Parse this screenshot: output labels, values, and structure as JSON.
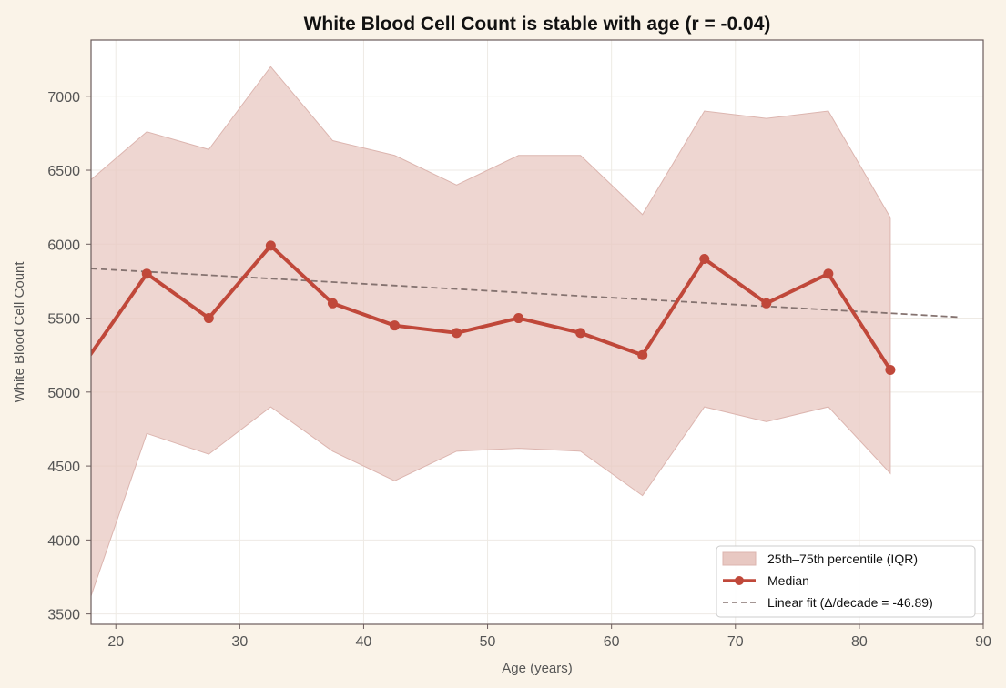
{
  "chart_data": {
    "type": "line",
    "title": "White Blood Cell Count is stable with age (r = -0.04)",
    "xlabel": "Age (years)",
    "ylabel": "White Blood Cell Count",
    "xlim": [
      18,
      90
    ],
    "ylim": [
      3430,
      7380
    ],
    "xticks": [
      20,
      30,
      40,
      50,
      60,
      70,
      80,
      90
    ],
    "yticks": [
      3500,
      4000,
      4500,
      5000,
      5500,
      6000,
      6500,
      7000
    ],
    "grid": true,
    "legend_position": "bottom-right",
    "x": [
      17.5,
      22.5,
      27.5,
      32.5,
      37.5,
      42.5,
      47.5,
      52.5,
      57.5,
      62.5,
      67.5,
      72.5,
      77.5,
      82.5
    ],
    "series": [
      {
        "name": "Median",
        "kind": "line-markers",
        "color": "#c0483a",
        "values": [
          5200,
          5800,
          5500,
          5990,
          5600,
          5450,
          5400,
          5500,
          5400,
          5250,
          5900,
          5600,
          5800,
          5150
        ]
      },
      {
        "name": "25th–75th percentile (IQR)",
        "kind": "band",
        "color": "#e8c8c2",
        "lower": [
          3500,
          4720,
          4580,
          4900,
          4600,
          4400,
          4600,
          4620,
          4600,
          4300,
          4900,
          4800,
          4900,
          4450
        ],
        "upper": [
          6400,
          6760,
          6640,
          7200,
          6700,
          6600,
          6400,
          6600,
          6600,
          6200,
          6900,
          6850,
          6900,
          6180
        ]
      },
      {
        "name": "Linear fit (Δ/decade = -46.89)",
        "kind": "dashed-line",
        "color": "#857370",
        "x": [
          18,
          88
        ],
        "values": [
          5835,
          5507
        ]
      }
    ]
  }
}
